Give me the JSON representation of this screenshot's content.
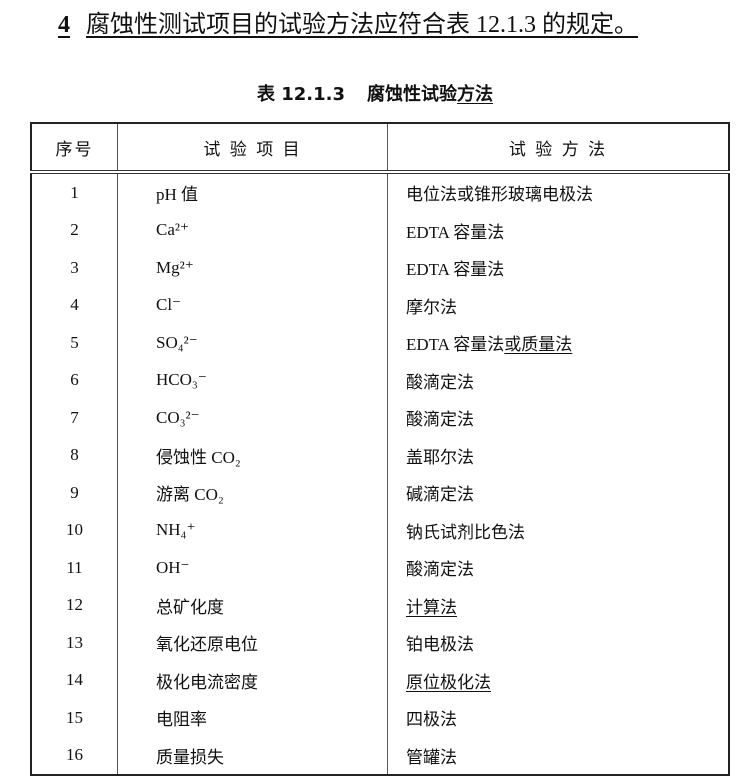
{
  "heading": {
    "number": "4",
    "text": "腐蚀性测试项目的试验方法应符合表 12.1.3 的规定。"
  },
  "caption": {
    "label": "表 12.1.3",
    "title": [
      "腐蚀性试验",
      "方法"
    ],
    "title_underline": [
      false,
      true
    ]
  },
  "table": {
    "columns": [
      "序号",
      "试 验 项 目",
      "试 验 方 法"
    ],
    "rows": [
      {
        "no": 1,
        "item": "pH 值",
        "method": "电位法或锥形玻璃电极法"
      },
      {
        "no": 2,
        "item": "Ca²⁺",
        "method": "EDTA 容量法"
      },
      {
        "no": 3,
        "item": "Mg²⁺",
        "method": "EDTA 容量法"
      },
      {
        "no": 4,
        "item": "Cl⁻",
        "method": "摩尔法"
      },
      {
        "no": 5,
        "item": "SO₄²⁻",
        "method": [
          "EDTA 容量法",
          "或质量法"
        ],
        "method_underline": [
          false,
          true
        ]
      },
      {
        "no": 6,
        "item": "HCO₃⁻",
        "method": "酸滴定法"
      },
      {
        "no": 7,
        "item": "CO₃²⁻",
        "method": "酸滴定法"
      },
      {
        "no": 8,
        "item": "侵蚀性 CO₂",
        "method": "盖耶尔法"
      },
      {
        "no": 9,
        "item": "游离 CO₂",
        "method": "碱滴定法"
      },
      {
        "no": 10,
        "item": "NH₄⁺",
        "method": "钠氏试剂比色法"
      },
      {
        "no": 11,
        "item": "OH⁻",
        "method": "酸滴定法"
      },
      {
        "no": 12,
        "item": "总矿化度",
        "method": "计算法",
        "method_underline": true
      },
      {
        "no": 13,
        "item": "氧化还原电位",
        "method": "铂电极法"
      },
      {
        "no": 14,
        "item": "极化电流密度",
        "method": "原位极化法",
        "method_underline": true
      },
      {
        "no": 15,
        "item": "电阻率",
        "method": "四极法"
      },
      {
        "no": 16,
        "item": "质量损失",
        "method": "管罐法"
      }
    ]
  }
}
